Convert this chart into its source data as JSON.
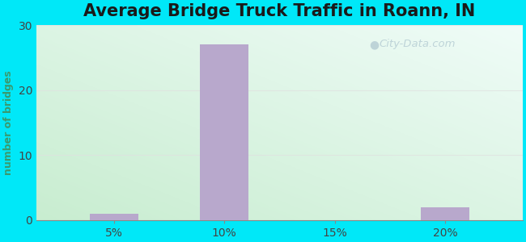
{
  "title": "Average Bridge Truck Traffic in Roann, IN",
  "xlabel": "",
  "ylabel": "number of bridges",
  "bar_positions": [
    5,
    10,
    15,
    20
  ],
  "bar_values": [
    1,
    27,
    0,
    2
  ],
  "bar_width": 2.2,
  "bar_color": "#b8a8cc",
  "xtick_labels": [
    "5%",
    "10%",
    "15%",
    "20%"
  ],
  "xtick_positions": [
    5,
    10,
    15,
    20
  ],
  "ylim": [
    0,
    30
  ],
  "yticks": [
    0,
    10,
    20,
    30
  ],
  "xlim": [
    1.5,
    23.5
  ],
  "bg_outer_color": "#00e8f8",
  "title_fontsize": 15,
  "axis_label_color": "#3a9a6e",
  "tick_label_color": "#444444",
  "grid_color": "#e0e0e0",
  "watermark_text": "City-Data.com"
}
